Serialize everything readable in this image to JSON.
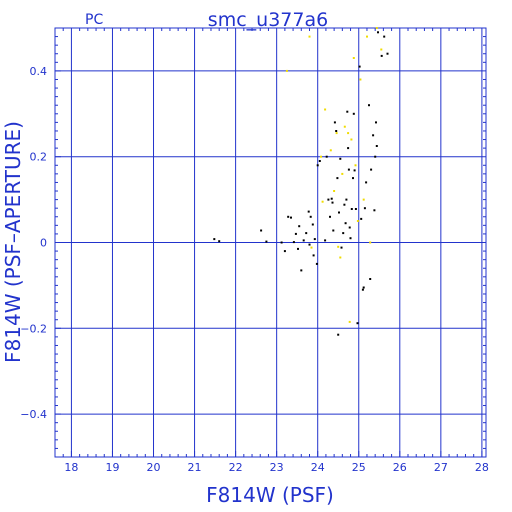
{
  "header": {
    "left_label": "PC",
    "title": "smc_u377a6"
  },
  "chart_data": {
    "type": "scatter",
    "title": "smc_u377a6",
    "xlabel": "F814W (PSF)",
    "ylabel": "F814W (PSF–APERTURE)",
    "xlim": [
      17.6,
      28.1
    ],
    "ylim": [
      -0.5,
      0.5
    ],
    "x_ticks": [
      18,
      19,
      20,
      21,
      22,
      23,
      24,
      25,
      26,
      27,
      28
    ],
    "y_ticks": [
      -0.4,
      -0.2,
      0,
      0.2,
      0.4
    ],
    "y_tick_labels": [
      "−0.4",
      "−0.2",
      "0",
      "0.2",
      "0.4"
    ],
    "grid": true,
    "colors": {
      "axis": "#2233cc",
      "grid": "#2233cc",
      "primary": "#000000",
      "secondary": "#f0dc00"
    },
    "series": [
      {
        "color": "#000000",
        "points": [
          [
            21.48,
            0.008
          ],
          [
            21.6,
            0.003
          ],
          [
            22.62,
            0.028
          ],
          [
            22.75,
            0.002
          ],
          [
            23.12,
            0.0
          ],
          [
            23.2,
            -0.02
          ],
          [
            23.28,
            0.06
          ],
          [
            23.35,
            0.058
          ],
          [
            23.42,
            0.001
          ],
          [
            23.47,
            0.02
          ],
          [
            23.52,
            -0.015
          ],
          [
            23.55,
            0.038
          ],
          [
            23.6,
            -0.065
          ],
          [
            23.66,
            0.005
          ],
          [
            23.72,
            0.022
          ],
          [
            23.78,
            0.072
          ],
          [
            23.8,
            -0.005
          ],
          [
            23.83,
            0.06
          ],
          [
            23.88,
            0.042
          ],
          [
            23.9,
            -0.03
          ],
          [
            23.93,
            0.008
          ],
          [
            23.98,
            -0.05
          ],
          [
            24.0,
            0.18
          ],
          [
            24.05,
            0.19
          ],
          [
            24.18,
            0.005
          ],
          [
            24.22,
            0.2
          ],
          [
            24.26,
            0.1
          ],
          [
            24.3,
            0.06
          ],
          [
            24.34,
            0.102
          ],
          [
            24.36,
            0.093
          ],
          [
            24.38,
            0.028
          ],
          [
            24.42,
            0.28
          ],
          [
            24.45,
            0.26
          ],
          [
            24.48,
            0.15
          ],
          [
            24.5,
            -0.215
          ],
          [
            24.52,
            0.07
          ],
          [
            24.55,
            0.195
          ],
          [
            24.58,
            -0.012
          ],
          [
            24.62,
            0.022
          ],
          [
            24.65,
            0.088
          ],
          [
            24.68,
            0.045
          ],
          [
            24.7,
            0.1
          ],
          [
            24.72,
            0.305
          ],
          [
            24.74,
            0.22
          ],
          [
            24.76,
            0.17
          ],
          [
            24.78,
            0.035
          ],
          [
            24.8,
            0.01
          ],
          [
            24.83,
            0.078
          ],
          [
            24.86,
            0.15
          ],
          [
            24.88,
            0.3
          ],
          [
            24.9,
            0.168
          ],
          [
            24.93,
            0.078
          ],
          [
            24.97,
            -0.188
          ],
          [
            25.02,
            0.41
          ],
          [
            25.06,
            0.055
          ],
          [
            25.1,
            -0.11
          ],
          [
            25.12,
            -0.105
          ],
          [
            25.15,
            0.08
          ],
          [
            25.18,
            0.14
          ],
          [
            25.25,
            0.32
          ],
          [
            25.28,
            -0.085
          ],
          [
            25.3,
            0.17
          ],
          [
            25.35,
            0.25
          ],
          [
            25.38,
            0.075
          ],
          [
            25.4,
            0.2
          ],
          [
            25.42,
            0.28
          ],
          [
            25.44,
            0.225
          ],
          [
            25.47,
            0.49
          ],
          [
            25.56,
            0.435
          ],
          [
            25.62,
            0.48
          ],
          [
            25.7,
            0.44
          ]
        ]
      },
      {
        "color": "#f0dc00",
        "points": [
          [
            23.25,
            0.4
          ],
          [
            23.8,
            0.48
          ],
          [
            23.85,
            -0.012
          ],
          [
            24.08,
            0.2
          ],
          [
            24.12,
            0.095
          ],
          [
            24.18,
            0.31
          ],
          [
            24.32,
            0.215
          ],
          [
            24.4,
            0.12
          ],
          [
            24.46,
            0.255
          ],
          [
            24.5,
            -0.01
          ],
          [
            24.55,
            -0.035
          ],
          [
            24.6,
            0.16
          ],
          [
            24.66,
            0.27
          ],
          [
            24.74,
            0.255
          ],
          [
            24.78,
            -0.185
          ],
          [
            24.82,
            0.24
          ],
          [
            24.88,
            0.43
          ],
          [
            24.92,
            0.18
          ],
          [
            24.98,
            0.05
          ],
          [
            25.04,
            0.38
          ],
          [
            25.12,
            0.1
          ],
          [
            25.2,
            0.48
          ],
          [
            25.28,
            0.0
          ],
          [
            25.44,
            0.5
          ],
          [
            25.55,
            0.45
          ]
        ]
      }
    ]
  }
}
